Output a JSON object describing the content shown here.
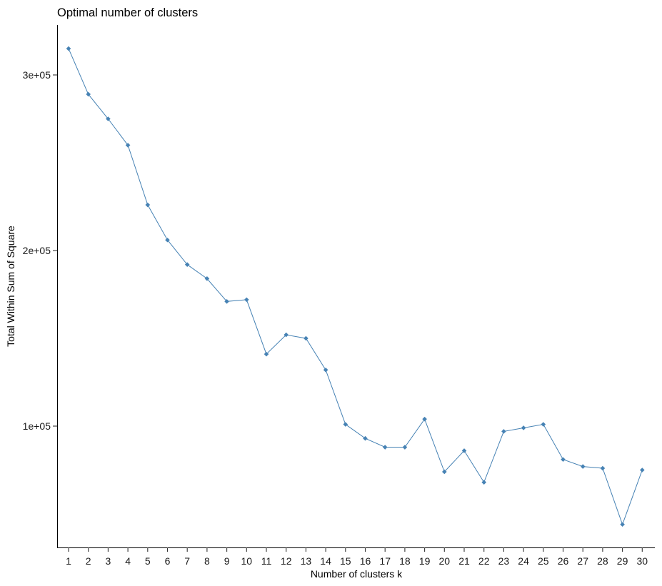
{
  "chart_data": {
    "type": "line",
    "title": "Optimal number of clusters",
    "xlabel": "Number of clusters k",
    "ylabel": "Total Within Sum of Square",
    "categories": [
      "1",
      "2",
      "3",
      "4",
      "5",
      "6",
      "7",
      "8",
      "9",
      "10",
      "11",
      "12",
      "13",
      "14",
      "15",
      "16",
      "17",
      "18",
      "19",
      "20",
      "21",
      "22",
      "23",
      "24",
      "25",
      "26",
      "27",
      "28",
      "29",
      "30"
    ],
    "y_ticks": [
      {
        "value": 100000,
        "label": "1e+05"
      },
      {
        "value": 200000,
        "label": "2e+05"
      },
      {
        "value": 300000,
        "label": "3e+05"
      }
    ],
    "ylim": [
      31000,
      330000
    ],
    "series": [
      {
        "color": "#4682b4",
        "values": [
          315000,
          289000,
          275000,
          260000,
          226000,
          206000,
          192000,
          184000,
          171000,
          172000,
          141000,
          152000,
          150000,
          132000,
          101000,
          93000,
          88000,
          88000,
          104000,
          74000,
          86000,
          68000,
          97000,
          99000,
          101000,
          81000,
          77000,
          76000,
          44000,
          75000
        ]
      }
    ],
    "grid": false,
    "legend": "none"
  }
}
